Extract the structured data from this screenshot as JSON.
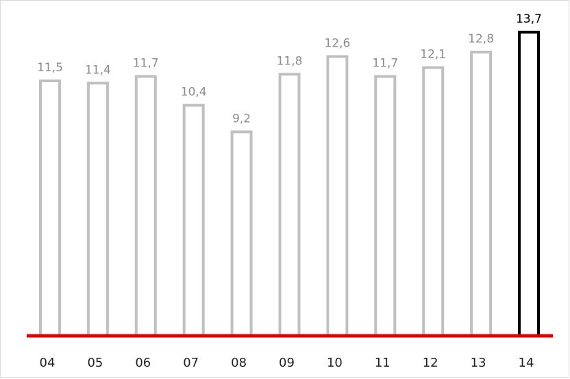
{
  "chart_data": {
    "type": "bar",
    "categories": [
      "04",
      "05",
      "06",
      "07",
      "08",
      "09",
      "10",
      "11",
      "12",
      "13",
      "14"
    ],
    "values": [
      11.5,
      11.4,
      11.7,
      10.4,
      9.2,
      11.8,
      12.6,
      11.7,
      12.1,
      12.8,
      13.7
    ],
    "value_labels": [
      "11,5",
      "11,4",
      "11,7",
      "10,4",
      "9,2",
      "11,8",
      "12,6",
      "11,7",
      "12,1",
      "12,8",
      "13,7"
    ],
    "highlight_index": 10,
    "ylim": [
      0,
      14.5
    ],
    "grid": false,
    "legend": "none",
    "colors": {
      "bar_outline": "#c0c0c0",
      "highlight_outline": "#000000",
      "label": "#8c8c8c",
      "highlight_label": "#000000",
      "baseline": "#e00000"
    }
  }
}
